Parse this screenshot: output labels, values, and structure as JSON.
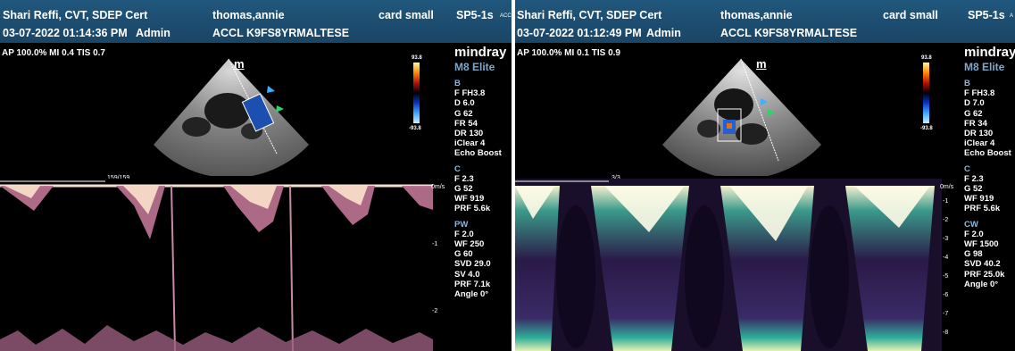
{
  "left": {
    "header": {
      "operator": "Shari Reffi, CVT, SDEP Cert",
      "patient": "thomas,annie",
      "preset": "card small",
      "probe": "SP5-1s",
      "acc_label": "ACC",
      "datetime": "03-07-2022 01:14:36 PM",
      "user": "Admin",
      "accession": "ACCL K9FS8YRMALTESE"
    },
    "ap_line": "AP 100.0%  MI 0.4  TIS 0.7",
    "logo": "mindray",
    "model": "M8 Elite",
    "colorbar_top": "93.8",
    "colorbar_bottom": "-93.8",
    "probe_mark": "m",
    "sweep_counter": "159/159",
    "velocity_unit": "0m/s",
    "scale_ticks": [
      "-1",
      "-2"
    ],
    "params": {
      "b_section": "B",
      "b_lines": [
        "F FH3.8",
        "D 6.0",
        "G 62",
        "FR 54",
        "DR 130",
        "iClear 4",
        "Echo Boost"
      ],
      "c_section": "C",
      "c_lines": [
        "F 2.3",
        "G 52",
        "WF 919",
        "PRF 5.6k"
      ],
      "d_section": "PW",
      "d_lines": [
        "F 2.0",
        "WF 250",
        "G 60",
        "SVD 29.0",
        "SV 4.0",
        "PRF 7.1k",
        "Angle 0°"
      ]
    }
  },
  "right": {
    "header": {
      "operator": "Shari Reffi, CVT, SDEP Cert",
      "patient": "thomas,annie",
      "preset": "card small",
      "probe": "SP5-1s",
      "acc_label": "A",
      "datetime": "03-07-2022 01:12:49 PM",
      "user": "Admin",
      "accession": "ACCL K9FS8YRMALTESE"
    },
    "ap_line": "AP 100.0%  MI 0.1  TIS 0.9",
    "logo": "mindray",
    "model": "M8 Elite",
    "colorbar_top": "93.8",
    "colorbar_bottom": "-93.8",
    "probe_mark": "m",
    "sweep_counter": "3/3",
    "velocity_unit": "0m/s",
    "scale_ticks": [
      "-1",
      "-2",
      "-3",
      "-4",
      "-5",
      "-6",
      "-7",
      "-8"
    ],
    "params": {
      "b_section": "B",
      "b_lines": [
        "F FH3.8",
        "D 7.0",
        "G 62",
        "FR 34",
        "DR 130",
        "iClear 4",
        "Echo Boost"
      ],
      "c_section": "C",
      "c_lines": [
        "F 2.3",
        "G 52",
        "WF 919",
        "PRF 5.6k"
      ],
      "d_section": "CW",
      "d_lines": [
        "F 2.0",
        "WF 1500",
        "G 98",
        "SVD 40.2",
        "PRF 25.0k",
        "Angle 0°"
      ]
    }
  }
}
